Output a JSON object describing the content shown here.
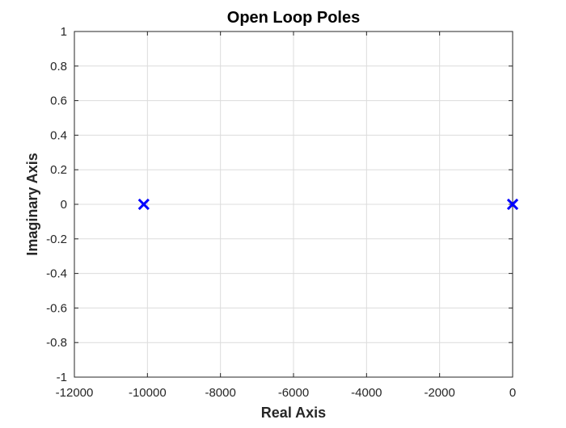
{
  "chart_data": {
    "type": "scatter",
    "title": "Open Loop Poles",
    "xlabel": "Real Axis",
    "ylabel": "Imaginary Axis",
    "xlim": [
      -12000,
      0
    ],
    "ylim": [
      -1,
      1
    ],
    "x_ticks": [
      -12000,
      -10000,
      -8000,
      -6000,
      -4000,
      -2000,
      0
    ],
    "y_ticks": [
      -1,
      -0.8,
      -0.6,
      -0.4,
      -0.2,
      0,
      0.2,
      0.4,
      0.6,
      0.8,
      1
    ],
    "x_tick_labels": [
      "-12000",
      "-10000",
      "-8000",
      "-6000",
      "-4000",
      "-2000",
      "0"
    ],
    "y_tick_labels": [
      "-1",
      "-0.8",
      "-0.6",
      "-0.4",
      "-0.2",
      "0",
      "0.2",
      "0.4",
      "0.6",
      "0.8",
      "1"
    ],
    "grid": true,
    "marker": "x",
    "marker_color": "#0000ff",
    "grid_color": "#dcdcdc",
    "axis_color": "#262626",
    "points": [
      {
        "x": -10100,
        "y": 0
      },
      {
        "x": 0,
        "y": 0
      }
    ]
  }
}
